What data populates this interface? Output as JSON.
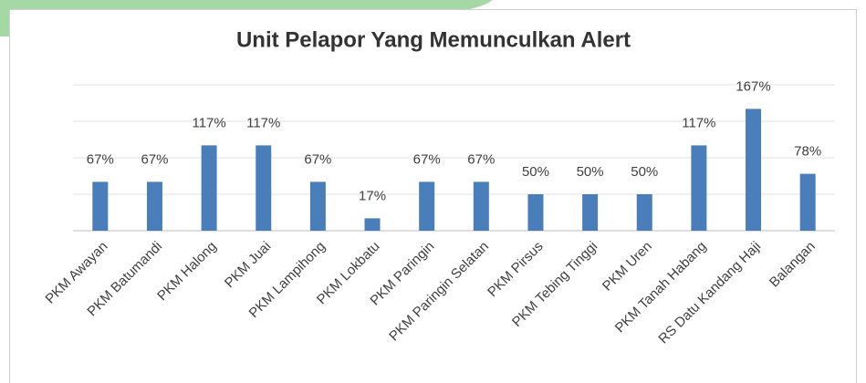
{
  "chart_data": {
    "type": "bar",
    "title": "Unit Pelapor Yang Memunculkan Alert",
    "categories": [
      "PKM Awayan",
      "PKM Batumandi",
      "PKM Halong",
      "PKM Juai",
      "PKM Lampihong",
      "PKM Lokbatu",
      "PKM Paringin",
      "PKM Paringin Selatan",
      "PKM Pirsus",
      "PKM Tebing Tinggi",
      "PKM Uren",
      "PKM Tanah Habang",
      "RS Datu Kandang Haji",
      "Balangan"
    ],
    "values": [
      67,
      67,
      117,
      117,
      67,
      17,
      67,
      67,
      50,
      50,
      50,
      117,
      167,
      78
    ],
    "value_labels": [
      "67%",
      "67%",
      "117%",
      "117%",
      "67%",
      "17%",
      "67%",
      "67%",
      "50%",
      "50%",
      "50%",
      "117%",
      "167%",
      "78%"
    ],
    "color": "#4a7ebb",
    "ylim": [
      0,
      200
    ],
    "yticks": [
      0,
      50,
      100,
      150,
      200
    ],
    "grid": true
  }
}
